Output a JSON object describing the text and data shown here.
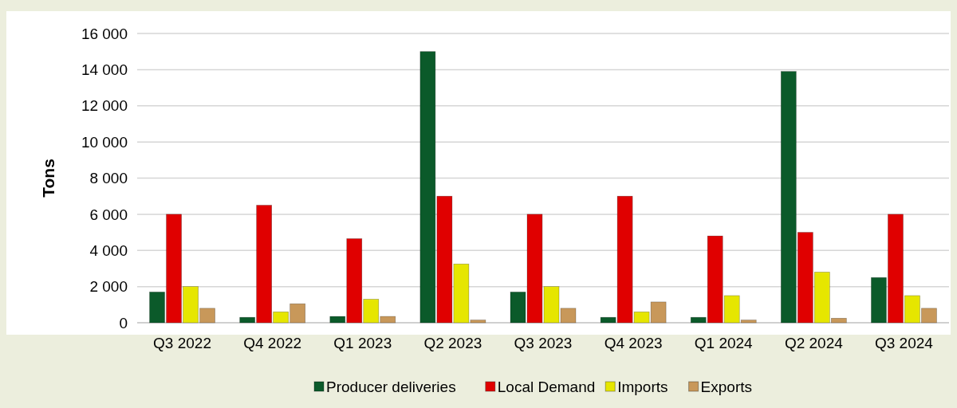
{
  "chart_data": {
    "type": "bar",
    "ylabel": "Tons",
    "categories": [
      "Q3 2022",
      "Q4 2022",
      "Q1 2023",
      "Q2 2023",
      "Q3 2023",
      "Q4 2023",
      "Q1 2024",
      "Q2 2024",
      "Q3 2024"
    ],
    "series": [
      {
        "name": "Producer deliveries",
        "color": "#0b5a2a",
        "values": [
          1700,
          300,
          350,
          15000,
          1700,
          300,
          300,
          13900,
          2500
        ]
      },
      {
        "name": "Local Demand",
        "color": "#e00000",
        "values": [
          6000,
          6500,
          4650,
          7000,
          6000,
          7000,
          4800,
          5000,
          6000
        ]
      },
      {
        "name": "Imports",
        "color": "#e6e600",
        "values": [
          2000,
          600,
          1300,
          3250,
          2000,
          600,
          1500,
          2800,
          1500
        ]
      },
      {
        "name": "Exports",
        "color": "#c8985a",
        "values": [
          800,
          1050,
          350,
          150,
          800,
          1150,
          150,
          250,
          800
        ]
      }
    ],
    "ylim": [
      0,
      16000
    ],
    "yticks": [
      {
        "value": 0,
        "label": "0"
      },
      {
        "value": 2000,
        "label": "2 000"
      },
      {
        "value": 4000,
        "label": "4 000"
      },
      {
        "value": 6000,
        "label": "6 000"
      },
      {
        "value": 8000,
        "label": "8 000"
      },
      {
        "value": 10000,
        "label": "10 000"
      },
      {
        "value": 12000,
        "label": "12 000"
      },
      {
        "value": 14000,
        "label": "14 000"
      },
      {
        "value": 16000,
        "label": "16 000"
      }
    ],
    "grid": "y",
    "legend": "bottom"
  }
}
